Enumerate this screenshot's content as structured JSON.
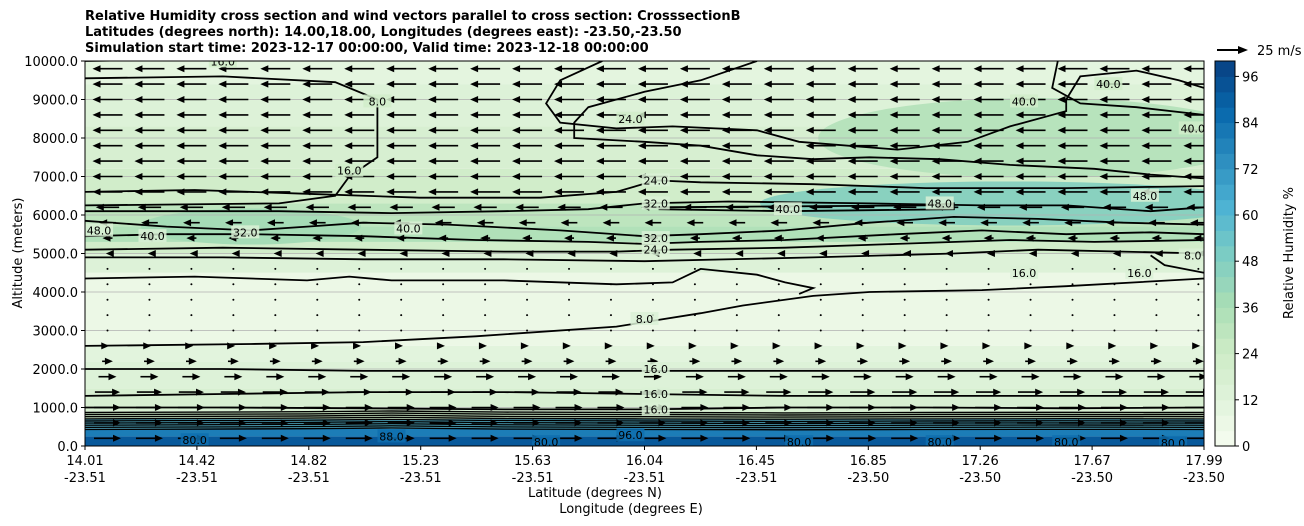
{
  "chart_data": {
    "type": "contour",
    "title_lines": [
      "Relative Humidity cross section and wind vectors parallel to cross section: CrosssectionB",
      "Latitudes (degrees north): 14.00,18.00, Longitudes (degrees east): -23.50,-23.50",
      "Simulation start time: 2023-12-17 00:00:00, Valid time: 2023-12-18 00:00:00"
    ],
    "xlabel": "Latitude (degrees N)",
    "xlabel2": "Longitude (degrees E)",
    "ylabel": "Altitude (meters)",
    "ylim": [
      0,
      10000
    ],
    "yticks": [
      "0.0",
      "1000.0",
      "2000.0",
      "3000.0",
      "4000.0",
      "5000.0",
      "6000.0",
      "7000.0",
      "8000.0",
      "9000.0",
      "10000.0"
    ],
    "xticks_lat": [
      "14.01",
      "14.42",
      "14.82",
      "15.23",
      "15.63",
      "16.04",
      "16.45",
      "16.85",
      "17.26",
      "17.67",
      "17.99"
    ],
    "xticks_lon": [
      "-23.51",
      "-23.51",
      "-23.51",
      "-23.51",
      "-23.51",
      "-23.51",
      "-23.51",
      "-23.50",
      "-23.50",
      "-23.50",
      "-23.50"
    ],
    "grid": "horizontal",
    "colorbar": {
      "label": "Relative Humidity %",
      "ticks": [
        "0",
        "12",
        "24",
        "36",
        "48",
        "60",
        "72",
        "84",
        "96"
      ],
      "min": 0,
      "max": 100
    },
    "quiver_key": "25 m/s",
    "contour_levels": [
      8,
      16,
      24,
      32,
      40,
      48,
      80,
      88,
      96
    ],
    "contour_labels": [
      {
        "text": "16.0",
        "x": 14.5,
        "y": 9990
      },
      {
        "text": "8.0",
        "x": 15.05,
        "y": 8950
      },
      {
        "text": "24.0",
        "x": 15.95,
        "y": 8500
      },
      {
        "text": "40.0",
        "x": 17.65,
        "y": 9400
      },
      {
        "text": "40.0",
        "x": 17.35,
        "y": 8950
      },
      {
        "text": "40.0",
        "x": 17.95,
        "y": 8250
      },
      {
        "text": "16.0",
        "x": 14.95,
        "y": 7150
      },
      {
        "text": "24.0",
        "x": 16.04,
        "y": 6900
      },
      {
        "text": "32.0",
        "x": 16.04,
        "y": 6300
      },
      {
        "text": "48.0",
        "x": 17.78,
        "y": 6500
      },
      {
        "text": "40.0",
        "x": 16.51,
        "y": 6150
      },
      {
        "text": "48.0",
        "x": 17.05,
        "y": 6300
      },
      {
        "text": "48.0",
        "x": 14.06,
        "y": 5600
      },
      {
        "text": "40.0",
        "x": 14.25,
        "y": 5450
      },
      {
        "text": "32.0",
        "x": 14.58,
        "y": 5550
      },
      {
        "text": "40.0",
        "x": 15.16,
        "y": 5650
      },
      {
        "text": "32.0",
        "x": 16.04,
        "y": 5400
      },
      {
        "text": "24.0",
        "x": 16.04,
        "y": 5100
      },
      {
        "text": "16.0",
        "x": 17.35,
        "y": 4500
      },
      {
        "text": "16.0",
        "x": 17.76,
        "y": 4500
      },
      {
        "text": "8.0",
        "x": 17.95,
        "y": 4950
      },
      {
        "text": "8.0",
        "x": 16.0,
        "y": 3300
      },
      {
        "text": "16.0",
        "x": 16.04,
        "y": 2000
      },
      {
        "text": "16.0",
        "x": 16.04,
        "y": 1350
      },
      {
        "text": "16.0",
        "x": 16.04,
        "y": 950
      },
      {
        "text": "80.0",
        "x": 14.4,
        "y": 150
      },
      {
        "text": "88.0",
        "x": 15.1,
        "y": 250
      },
      {
        "text": "80.0",
        "x": 15.65,
        "y": 100
      },
      {
        "text": "96.0",
        "x": 15.95,
        "y": 280
      },
      {
        "text": "80.0",
        "x": 16.55,
        "y": 100
      },
      {
        "text": "80.0",
        "x": 17.05,
        "y": 100
      },
      {
        "text": "80.0",
        "x": 17.5,
        "y": 100
      },
      {
        "text": "80.0",
        "x": 17.88,
        "y": 80
      }
    ],
    "wind": "vectors parallel to cross section; easterly (pointing left) above ~5000 m, westerly (pointing right) below ~2500 m"
  }
}
